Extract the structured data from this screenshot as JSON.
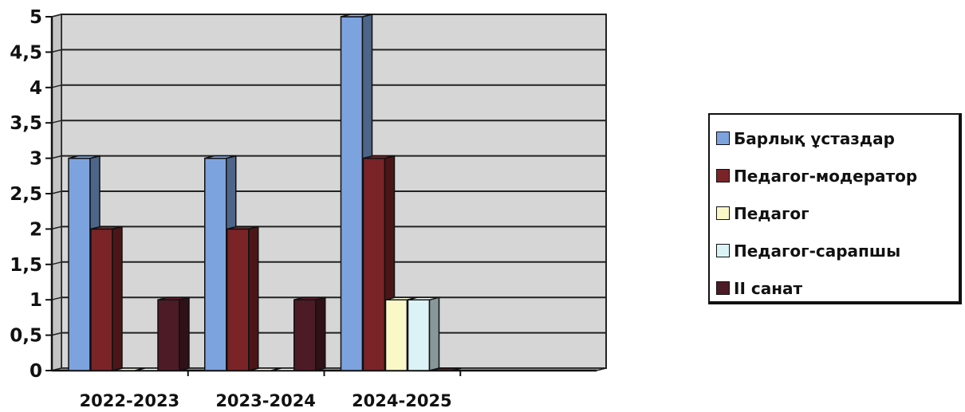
{
  "chart_data": {
    "type": "bar",
    "categories": [
      "2022-2023",
      "2023-2024",
      "2024-2025"
    ],
    "series": [
      {
        "name": "Барлық ұстаздар",
        "values": [
          3,
          3,
          5
        ],
        "color": "#7da3de"
      },
      {
        "name": "Педагог-модератор",
        "values": [
          2,
          2,
          3
        ],
        "color": "#7a2428"
      },
      {
        "name": "Педагог",
        "values": [
          0,
          0,
          1
        ],
        "color": "#fbf8c8"
      },
      {
        "name": "Педагог-сарапшы",
        "values": [
          0,
          0,
          1
        ],
        "color": "#dbf3f6"
      },
      {
        "name": "II санат",
        "values": [
          1,
          1,
          0
        ],
        "color": "#4d1b26"
      }
    ],
    "y_ticks": [
      "0",
      "0,5",
      "1",
      "1,5",
      "2",
      "2,5",
      "3",
      "3,5",
      "4",
      "4,5",
      "5"
    ],
    "ylim": [
      0,
      5
    ],
    "grid": true,
    "legend_position": "right",
    "plot_background": "#d6d6d6"
  }
}
